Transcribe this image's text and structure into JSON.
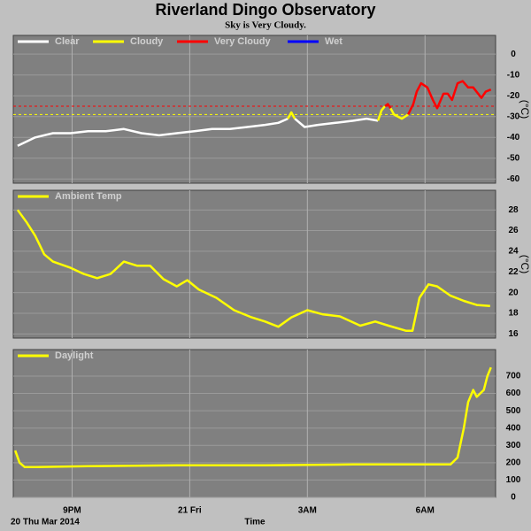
{
  "header": {
    "title": "Riverland Dingo Observatory",
    "subtitle": "Sky is Very Cloudy."
  },
  "chart_data": [
    {
      "type": "line",
      "ylabel": "(°C)",
      "xlim": [
        19.5,
        31.8
      ],
      "ylim": [
        -62,
        9
      ],
      "yticks": [
        0,
        -10,
        -20,
        -30,
        -40,
        -50,
        -60
      ],
      "grid": true,
      "thresholds": [
        {
          "value": -25,
          "color": "#ff0000"
        },
        {
          "value": -29,
          "color": "#ffff00"
        }
      ],
      "series": [
        {
          "name": "Clear",
          "color": "#ffffff",
          "x": [
            19.61,
            20.06,
            20.51,
            20.96,
            21.41,
            21.86,
            22.32,
            22.77,
            23.22,
            23.67,
            24.12,
            24.57,
            25.02,
            25.47,
            25.92,
            26.26,
            26.5,
            26.59,
            26.68,
            26.93,
            27.27,
            27.72,
            28.17,
            28.51,
            28.8
          ],
          "values": [
            -44,
            -40,
            -38,
            -38,
            -37,
            -37,
            -36,
            -38,
            -39,
            -38,
            -37,
            -36,
            -36,
            -35,
            -34,
            -33,
            -31,
            null,
            -31,
            -35,
            -34,
            -33,
            -32,
            -31,
            -32
          ]
        },
        {
          "name": "Cloudy",
          "color": "#ffff00",
          "x": [
            26.5,
            26.59,
            26.68,
            28.7,
            28.8,
            28.89,
            28.98,
            29.05,
            29.12,
            29.21,
            29.41,
            29.57
          ],
          "values": [
            -31,
            -28,
            -31,
            null,
            -32,
            -27,
            -25,
            null,
            -26,
            -29,
            -31,
            -29
          ]
        },
        {
          "name": "Very Cloudy",
          "color": "#ff0000",
          "x": [
            28.98,
            29.05,
            29.12,
            29.3,
            29.57,
            29.7,
            29.79,
            29.9,
            30.06,
            30.2,
            30.31,
            30.47,
            30.58,
            30.69,
            30.83,
            30.96,
            31.1,
            31.23,
            31.44,
            31.55,
            31.68
          ],
          "values": [
            -25,
            -24,
            -26,
            null,
            -29,
            -24,
            -18,
            -14,
            -16,
            -22,
            -26,
            -19,
            -19,
            -22,
            -14,
            -13,
            -16,
            -16,
            -21,
            -18,
            -17
          ]
        },
        {
          "name": "Wet",
          "color": "#0000ff",
          "x": [],
          "values": []
        }
      ]
    },
    {
      "type": "line",
      "ylabel": "(°C)",
      "xlim": [
        19.5,
        31.8
      ],
      "ylim": [
        15.6,
        29.9
      ],
      "yticks": [
        16,
        18,
        20,
        22,
        24,
        26,
        28
      ],
      "grid": true,
      "series": [
        {
          "name": "Ambient Temp",
          "color": "#ffff00",
          "x": [
            19.61,
            19.84,
            20.06,
            20.29,
            20.51,
            20.96,
            21.3,
            21.64,
            21.98,
            22.32,
            22.66,
            22.99,
            23.33,
            23.67,
            23.94,
            24.23,
            24.68,
            25.13,
            25.58,
            25.92,
            26.26,
            26.59,
            27.0,
            27.38,
            27.83,
            28.35,
            28.73,
            29.07,
            29.52,
            29.68,
            29.86,
            30.09,
            30.31,
            30.65,
            30.99,
            31.32,
            31.66
          ],
          "values": [
            28,
            26.8,
            25.5,
            23.7,
            23,
            22.4,
            21.8,
            21.4,
            21.8,
            23,
            22.6,
            22.6,
            21.3,
            20.6,
            21.2,
            20.3,
            19.5,
            18.3,
            17.6,
            17.2,
            16.7,
            17.6,
            18.3,
            17.9,
            17.7,
            16.8,
            17.2,
            16.8,
            16.3,
            16.3,
            19.5,
            20.8,
            20.6,
            19.7,
            19.2,
            18.8,
            18.7
          ]
        }
      ]
    },
    {
      "type": "line",
      "xlim": [
        19.5,
        31.8
      ],
      "ylim": [
        0,
        853
      ],
      "yticks": [
        0,
        100,
        200,
        300,
        400,
        500,
        600,
        700
      ],
      "grid": true,
      "xticks": [
        {
          "value": 21,
          "label": "9PM"
        },
        {
          "value": 24,
          "label": "21 Fri"
        },
        {
          "value": 27,
          "label": "3AM"
        },
        {
          "value": 30,
          "label": "6AM"
        }
      ],
      "xlabel": "Time",
      "date_label": "20 Thu Mar 2014",
      "series": [
        {
          "name": "Daylight",
          "color": "#ffff00",
          "x": [
            19.55,
            19.66,
            19.79,
            20.06,
            21.41,
            23.67,
            25.92,
            28.17,
            29.75,
            30.65,
            30.83,
            30.99,
            31.1,
            31.23,
            31.32,
            31.5,
            31.59,
            31.68
          ],
          "values": [
            270,
            200,
            175,
            175,
            180,
            185,
            185,
            190,
            190,
            190,
            230,
            400,
            550,
            620,
            580,
            620,
            700,
            750
          ]
        }
      ]
    }
  ]
}
